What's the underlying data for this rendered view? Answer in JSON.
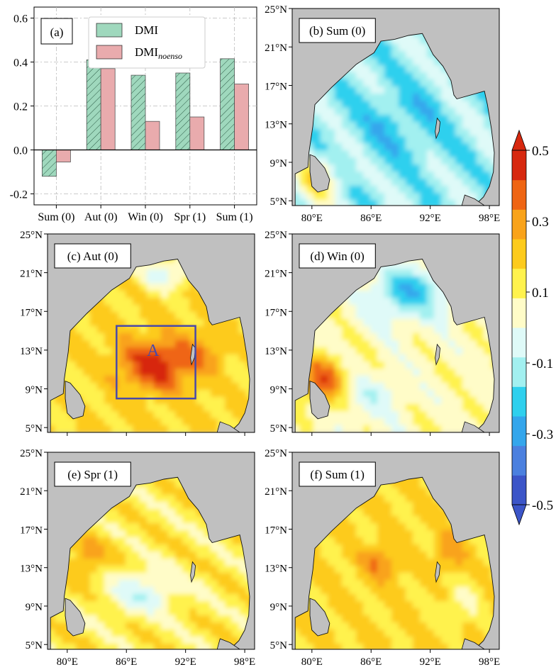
{
  "chart_data": [
    {
      "type": "bar",
      "panel_label": "(a)",
      "categories": [
        "Sum (0)",
        "Aut (0)",
        "Win (0)",
        "Spr (1)",
        "Sum (1)"
      ],
      "series": [
        {
          "name": "DMI",
          "values": [
            -0.12,
            0.41,
            0.34,
            0.35,
            0.415
          ],
          "color": "#9fd8bd",
          "hatch": true
        },
        {
          "name": "DMI",
          "subscript": "noenso",
          "values": [
            -0.055,
            0.37,
            0.13,
            0.15,
            0.3
          ],
          "color": "#e9abad",
          "hatch": false
        }
      ],
      "ylim": [
        -0.25,
        0.65
      ],
      "yticks": [
        "-0.2",
        "0.0",
        "0.2",
        "0.4",
        "0.6"
      ],
      "ytick_values": [
        -0.2,
        0.0,
        0.2,
        0.4,
        0.6
      ],
      "grid": true,
      "legend": "top-center"
    },
    {
      "type": "heatmap",
      "panels": [
        {
          "label": "(b) Sum (0)"
        },
        {
          "label": "(c) Aut (0)",
          "box_label": "A"
        },
        {
          "label": "(d) Win (0)"
        },
        {
          "label": "(e) Spr (1)"
        },
        {
          "label": "(f) Sum (1)"
        }
      ],
      "lat_ticks": [
        "25°N",
        "21°N",
        "17°N",
        "13°N",
        "9°N",
        "5°N"
      ],
      "lat_values": [
        25,
        21,
        17,
        13,
        9,
        5
      ],
      "lon_ticks": [
        "80°E",
        "86°E",
        "92°E",
        "98°E"
      ],
      "lon_values": [
        80,
        86,
        92,
        98
      ],
      "lon_range": [
        78,
        99
      ],
      "lat_range": [
        4.5,
        25
      ],
      "box_A": {
        "lon": [
          85,
          93
        ],
        "lat": [
          8,
          15.5
        ]
      },
      "colorbar": {
        "ticks": [
          "0.5",
          "0.3",
          "0.1",
          "-0.1",
          "-0.3",
          "-0.5"
        ],
        "tick_values": [
          0.5,
          0.3,
          0.1,
          -0.1,
          -0.3,
          -0.5
        ],
        "range": [
          -0.5,
          0.5
        ],
        "colors": [
          "#3c55c8",
          "#4b80df",
          "#34a6ec",
          "#2fd0ee",
          "#a2f0f0",
          "#dffaf8",
          "#fffcc8",
          "#fff24d",
          "#fdcb1c",
          "#f9a31a",
          "#ef6513",
          "#d7280f"
        ]
      },
      "land_color": "#c0c0c0"
    }
  ]
}
